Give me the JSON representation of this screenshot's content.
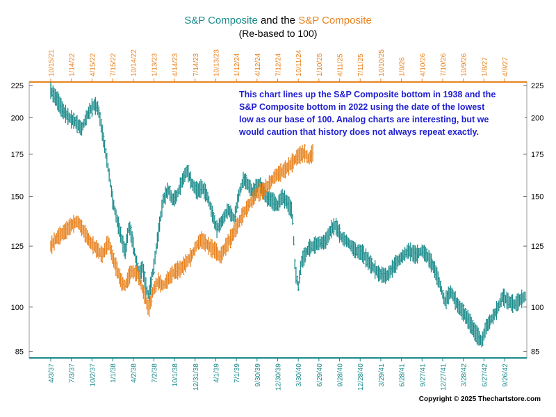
{
  "chart_data": {
    "type": "line",
    "title": {
      "part1": "S&P Composite",
      "part2": " and the ",
      "part3": "S&P Composite",
      "subtitle": "(Re-based to 100)"
    },
    "annotation": [
      "This chart lines up the S&P Composite bottom in 1938 and the",
      "S&P Composite bottom in 2022 using the date of the lowest",
      "low as our base of 100.  Analog charts are interesting, but we",
      "would caution that history does not always repeat exactly."
    ],
    "copyright": "Copyright © 2025 Thechartstore.com",
    "y_scale": "log",
    "ylim": [
      83,
      228
    ],
    "y_ticks": [
      225,
      200,
      175,
      150,
      125,
      100,
      85
    ],
    "bottom_axis": {
      "color": "#1a8a8a",
      "labels": [
        "4/3/37",
        "7/3/37",
        "10/2/37",
        "1/1/38",
        "4/2/38",
        "7/2/38",
        "10/1/38",
        "12/31/38",
        "4/1/39",
        "7/1/39",
        "9/30/39",
        "12/30/39",
        "3/30/40",
        "6/29/40",
        "9/28/40",
        "12/28/40",
        "3/29/41",
        "6/28/41",
        "9/27/41",
        "12/27/41",
        "3/28/42",
        "6/27/42",
        "9/26/42"
      ]
    },
    "top_axis": {
      "color": "#e8821e",
      "labels": [
        "10/15/21",
        "1/14/22",
        "4/15/22",
        "7/15/22",
        "10/14/22",
        "1/13/23",
        "4/14/23",
        "7/14/23",
        "10/13/23",
        "1/12/24",
        "4/12/24",
        "7/12/24",
        "10/11/24",
        "1/10/25",
        "4/11/25",
        "7/11/25",
        "10/10/25",
        "1/9/26",
        "4/10/26",
        "7/10/26",
        "10/9/26",
        "1/8/27",
        "4/9/27"
      ]
    },
    "series": [
      {
        "name": "S&P Composite",
        "color": "#1a8a8a",
        "axis": "bottom",
        "points": [
          [
            0,
            221
          ],
          [
            0.3,
            214
          ],
          [
            0.6,
            205
          ],
          [
            0.9,
            200
          ],
          [
            1.2,
            197
          ],
          [
            1.5,
            192
          ],
          [
            1.8,
            203
          ],
          [
            2.1,
            210
          ],
          [
            2.3,
            207
          ],
          [
            2.55,
            185
          ],
          [
            2.8,
            165
          ],
          [
            3.0,
            148
          ],
          [
            3.2,
            138
          ],
          [
            3.4,
            130
          ],
          [
            3.6,
            122
          ],
          [
            3.8,
            135
          ],
          [
            3.95,
            128
          ],
          [
            4.1,
            120
          ],
          [
            4.3,
            112
          ],
          [
            4.45,
            116
          ],
          [
            4.6,
            108
          ],
          [
            4.75,
            104
          ],
          [
            5.0,
            116
          ],
          [
            5.2,
            130
          ],
          [
            5.45,
            148
          ],
          [
            5.7,
            154
          ],
          [
            5.9,
            148
          ],
          [
            6.1,
            150
          ],
          [
            6.35,
            158
          ],
          [
            6.6,
            165
          ],
          [
            6.85,
            157
          ],
          [
            7.1,
            153
          ],
          [
            7.35,
            155
          ],
          [
            7.6,
            150
          ],
          [
            7.85,
            140
          ],
          [
            8.05,
            133
          ],
          [
            8.3,
            137
          ],
          [
            8.6,
            143
          ],
          [
            8.9,
            138
          ],
          [
            9.1,
            150
          ],
          [
            9.35,
            160
          ],
          [
            9.6,
            156
          ],
          [
            9.8,
            152
          ],
          [
            10.1,
            158
          ],
          [
            10.4,
            150
          ],
          [
            10.7,
            148
          ],
          [
            11.0,
            145
          ],
          [
            11.2,
            150
          ],
          [
            11.45,
            147
          ],
          [
            11.7,
            142
          ],
          [
            11.85,
            114
          ],
          [
            12.0,
            108
          ],
          [
            12.15,
            118
          ],
          [
            12.5,
            124
          ],
          [
            12.9,
            126
          ],
          [
            13.3,
            127
          ],
          [
            13.6,
            133
          ],
          [
            13.8,
            135
          ],
          [
            14.1,
            129
          ],
          [
            14.4,
            127
          ],
          [
            14.75,
            123
          ],
          [
            15.1,
            122
          ],
          [
            15.5,
            117
          ],
          [
            15.9,
            113
          ],
          [
            16.3,
            112
          ],
          [
            16.7,
            117
          ],
          [
            17.0,
            120
          ],
          [
            17.35,
            123
          ],
          [
            17.7,
            121
          ],
          [
            18.0,
            123
          ],
          [
            18.3,
            120
          ],
          [
            18.6,
            115
          ],
          [
            18.85,
            109
          ],
          [
            19.1,
            102
          ],
          [
            19.4,
            106
          ],
          [
            19.7,
            101
          ],
          [
            20.0,
            98
          ],
          [
            20.2,
            96
          ],
          [
            20.5,
            92
          ],
          [
            20.7,
            90
          ],
          [
            20.9,
            88
          ],
          [
            21.1,
            93
          ],
          [
            21.4,
            96
          ],
          [
            21.7,
            100
          ],
          [
            21.9,
            104
          ],
          [
            22.2,
            102
          ],
          [
            22.5,
            101
          ],
          [
            22.8,
            103
          ],
          [
            23.0,
            104
          ]
        ]
      },
      {
        "name": "S&P Composite",
        "color": "#e8821e",
        "axis": "top",
        "points": [
          [
            0,
            125
          ],
          [
            0.3,
            129
          ],
          [
            0.7,
            132
          ],
          [
            1.0,
            135
          ],
          [
            1.3,
            137
          ],
          [
            1.6,
            132
          ],
          [
            1.9,
            127
          ],
          [
            2.2,
            124
          ],
          [
            2.5,
            121
          ],
          [
            2.8,
            127
          ],
          [
            3.0,
            120
          ],
          [
            3.2,
            115
          ],
          [
            3.4,
            110
          ],
          [
            3.6,
            108
          ],
          [
            3.9,
            114
          ],
          [
            4.2,
            113
          ],
          [
            4.4,
            108
          ],
          [
            4.6,
            103
          ],
          [
            4.75,
            99
          ],
          [
            4.95,
            106
          ],
          [
            5.2,
            110
          ],
          [
            5.45,
            108
          ],
          [
            5.7,
            111
          ],
          [
            6.0,
            114
          ],
          [
            6.3,
            115
          ],
          [
            6.6,
            118
          ],
          [
            6.85,
            121
          ],
          [
            7.1,
            126
          ],
          [
            7.3,
            128
          ],
          [
            7.55,
            126
          ],
          [
            7.8,
            124
          ],
          [
            8.0,
            123
          ],
          [
            8.2,
            120
          ],
          [
            8.5,
            125
          ],
          [
            8.8,
            130
          ],
          [
            9.1,
            136
          ],
          [
            9.4,
            142
          ],
          [
            9.7,
            147
          ],
          [
            10.0,
            152
          ],
          [
            10.3,
            153
          ],
          [
            10.6,
            157
          ],
          [
            10.9,
            162
          ],
          [
            11.2,
            164
          ],
          [
            11.5,
            167
          ],
          [
            11.8,
            171
          ],
          [
            12.0,
            174
          ],
          [
            12.3,
            176
          ],
          [
            12.5,
            172
          ],
          [
            12.7,
            176
          ]
        ]
      }
    ]
  }
}
